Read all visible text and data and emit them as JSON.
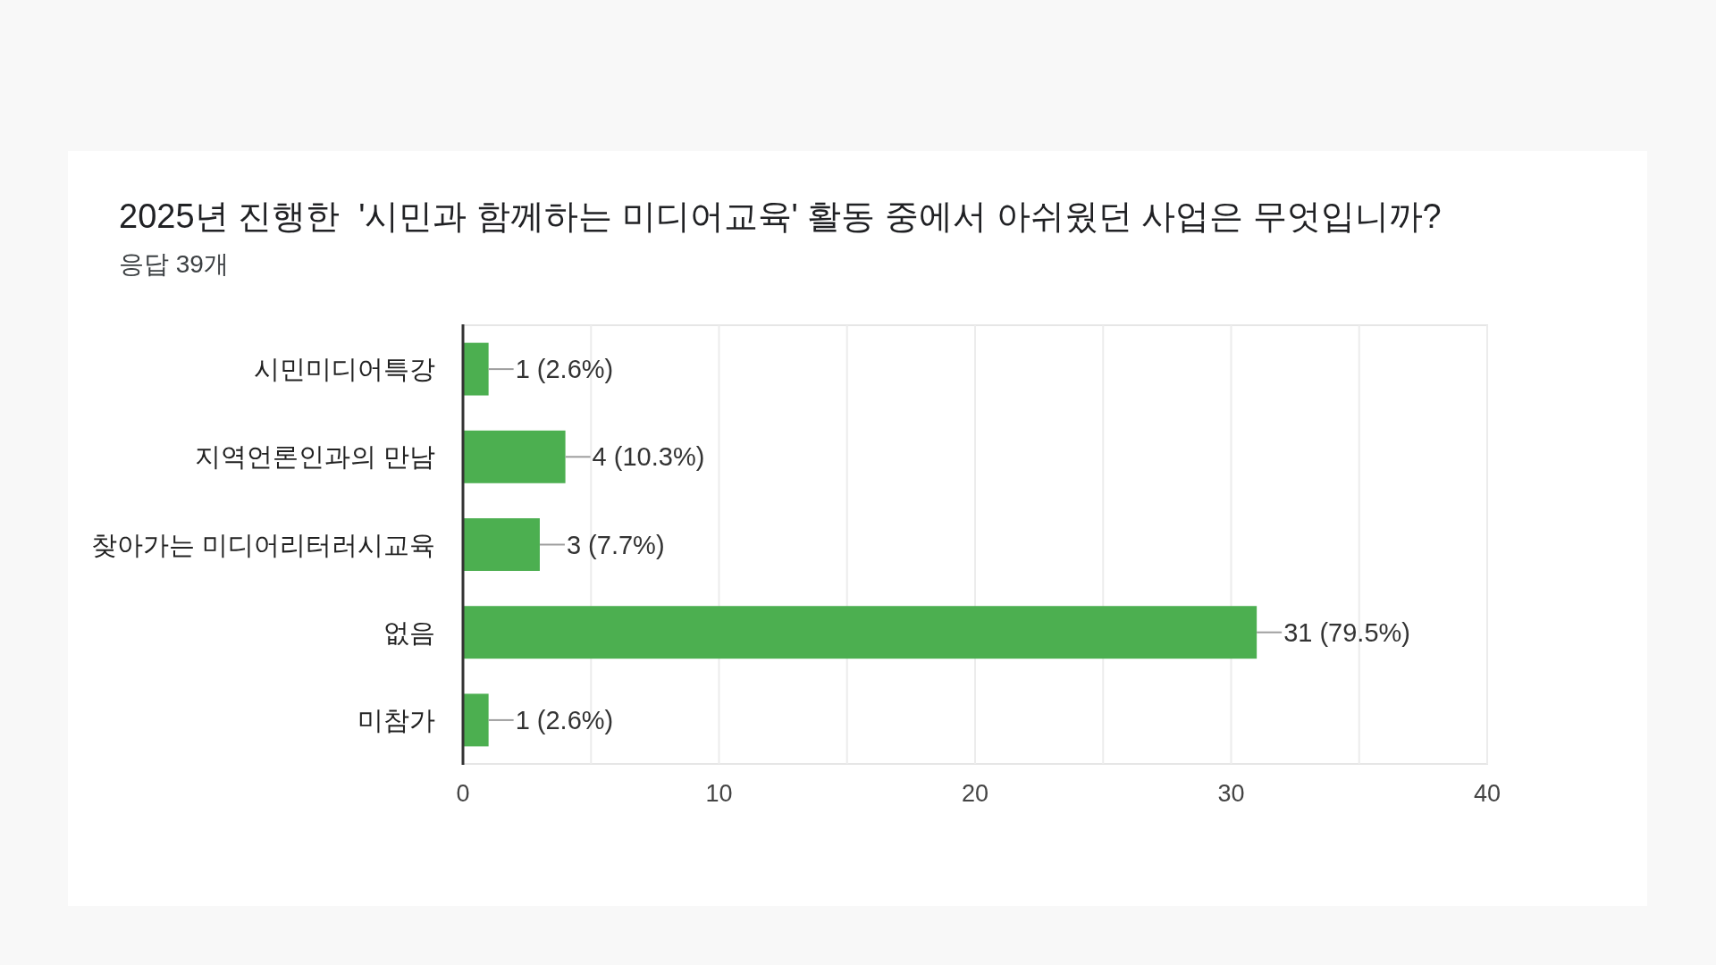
{
  "chart_data": {
    "type": "bar",
    "orientation": "horizontal",
    "title": "2025년 진행한  '시민과 함께하는 미디어교육' 활동 중에서 아쉬웠던 사업은 무엇입니까?",
    "subtitle": "응답 39개",
    "categories": [
      "시민미디어특강",
      "지역언론인과의 만남",
      "찾아가는 미디어리터러시교육",
      "없음",
      "미참가"
    ],
    "values": [
      1,
      4,
      3,
      31,
      1
    ],
    "color": "#4caf50",
    "value_labels": [
      "1 (2.6%)",
      "4 (10.3%)",
      "3 (7.7%)",
      "31 (79.5%)",
      "1 (2.6%)"
    ],
    "xlim": [
      0,
      40
    ],
    "xticks": [
      0,
      {
        "value": 5,
        "label": null
      },
      10,
      {
        "value": 15,
        "label": null
      },
      20,
      {
        "value": 25,
        "label": null
      },
      30,
      {
        "value": 35,
        "label": null
      },
      40
    ],
    "grid": "x"
  }
}
